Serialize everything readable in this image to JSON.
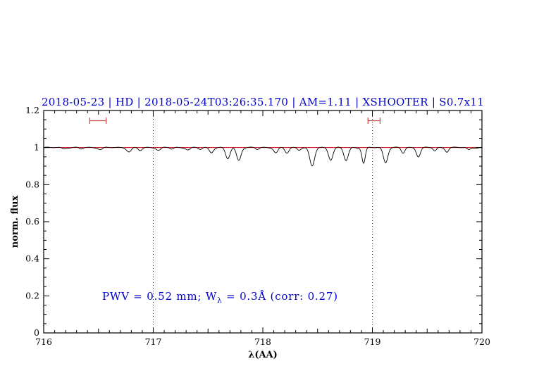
{
  "chart_data": {
    "type": "line",
    "title": "2018-05-23 | HD | 2018-05-24T03:26:35.170 | AM=1.11 | XSHOOTER | S0.7x11",
    "title_color": "#0000cc",
    "xlabel": "λ(AA)",
    "ylabel": "norm. flux",
    "xlim": [
      716,
      720
    ],
    "ylim": [
      0,
      1.2
    ],
    "x_ticks": [
      716,
      717,
      718,
      719,
      720
    ],
    "x_tick_labels": [
      "716",
      "717",
      "718",
      "719",
      "720"
    ],
    "y_ticks": [
      0,
      0.2,
      0.4,
      0.6,
      0.8,
      1,
      1.2
    ],
    "y_tick_labels": [
      "0",
      "0.2",
      "0.4",
      "0.6",
      "0.8",
      "1",
      "1.2"
    ],
    "grid": "dotted vertical guides only",
    "legend": "none",
    "dotted_vlines": [
      717,
      719
    ],
    "series": [
      {
        "name": "observed-spectrum",
        "color": "#000000",
        "style": "continuum-with-absorption-lines",
        "continuum": 1.0,
        "lines": [
          {
            "center": 716.18,
            "depth": 0.006,
            "sigma": 0.015
          },
          {
            "center": 716.34,
            "depth": 0.008,
            "sigma": 0.015
          },
          {
            "center": 716.52,
            "depth": 0.01,
            "sigma": 0.018
          },
          {
            "center": 716.78,
            "depth": 0.022,
            "sigma": 0.02
          },
          {
            "center": 716.88,
            "depth": 0.016,
            "sigma": 0.018
          },
          {
            "center": 717.05,
            "depth": 0.014,
            "sigma": 0.018
          },
          {
            "center": 717.17,
            "depth": 0.008,
            "sigma": 0.015
          },
          {
            "center": 717.32,
            "depth": 0.012,
            "sigma": 0.018
          },
          {
            "center": 717.43,
            "depth": 0.01,
            "sigma": 0.015
          },
          {
            "center": 717.53,
            "depth": 0.026,
            "sigma": 0.018
          },
          {
            "center": 717.68,
            "depth": 0.06,
            "sigma": 0.02
          },
          {
            "center": 717.78,
            "depth": 0.068,
            "sigma": 0.02
          },
          {
            "center": 717.95,
            "depth": 0.01,
            "sigma": 0.015
          },
          {
            "center": 718.12,
            "depth": 0.028,
            "sigma": 0.018
          },
          {
            "center": 718.22,
            "depth": 0.03,
            "sigma": 0.018
          },
          {
            "center": 718.33,
            "depth": 0.012,
            "sigma": 0.015
          },
          {
            "center": 718.45,
            "depth": 0.1,
            "sigma": 0.022
          },
          {
            "center": 718.62,
            "depth": 0.065,
            "sigma": 0.02
          },
          {
            "center": 718.76,
            "depth": 0.07,
            "sigma": 0.02
          },
          {
            "center": 718.92,
            "depth": 0.085,
            "sigma": 0.015
          },
          {
            "center": 719.12,
            "depth": 0.08,
            "sigma": 0.02
          },
          {
            "center": 719.28,
            "depth": 0.03,
            "sigma": 0.016
          },
          {
            "center": 719.42,
            "depth": 0.048,
            "sigma": 0.018
          },
          {
            "center": 719.57,
            "depth": 0.018,
            "sigma": 0.015
          },
          {
            "center": 719.68,
            "depth": 0.022,
            "sigma": 0.015
          },
          {
            "center": 719.88,
            "depth": 0.012,
            "sigma": 0.015
          }
        ]
      },
      {
        "name": "telluric-model-continuum",
        "color": "#cc0000",
        "style": "flat",
        "value": 1.0
      }
    ],
    "range_markers": [
      {
        "x_start": 716.42,
        "x_end": 716.57,
        "y": 1.145,
        "color": "#cc4444"
      },
      {
        "x_start": 718.96,
        "x_end": 719.07,
        "y": 1.145,
        "color": "#cc4444"
      }
    ],
    "annotation": {
      "text_prefix": "PWV = 0.52 mm; W",
      "text_sub": "λ",
      "text_suffix": " = 0.3Å (corr: 0.27)",
      "x": 716.55,
      "y": 0.2,
      "color": "#0000cc"
    }
  }
}
